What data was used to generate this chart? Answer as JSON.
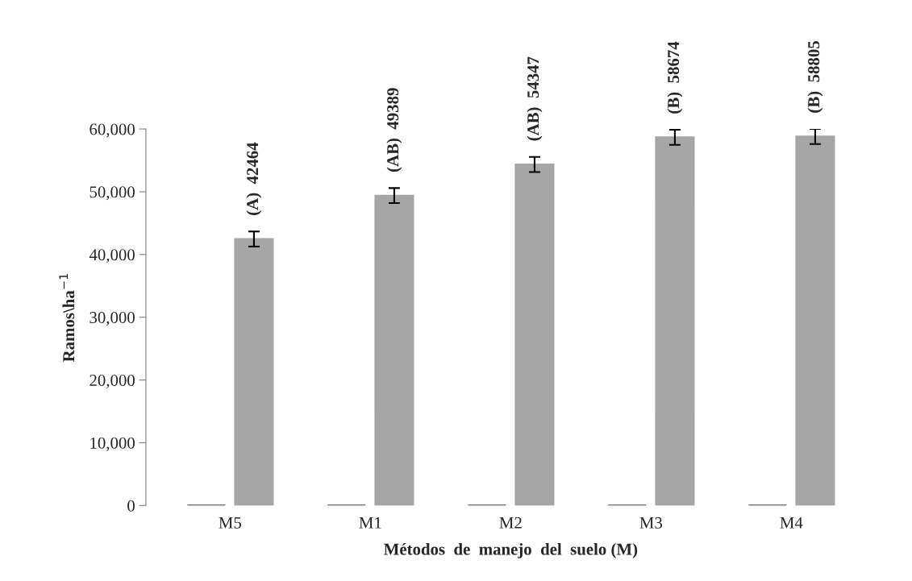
{
  "chart_data": {
    "type": "bar",
    "xlabel": "Métodos  de  manejo  del  suelo (M)",
    "ylabel": "Ramos\\ha$^{−1}$",
    "categories": [
      "M5",
      "M1",
      "M2",
      "M3",
      "M4"
    ],
    "series": [
      {
        "color": "#404040",
        "values": [
          0,
          0,
          0,
          0,
          0
        ]
      },
      {
        "color": "#a6a6a6",
        "values": [
          42464,
          49389,
          54347,
          58674,
          58805
        ],
        "errors": [
          1200,
          1200,
          1200,
          1200,
          1200
        ],
        "value_labels": [
          "(A)  42464",
          "(AB)  49389",
          "(AB)  54347",
          "(B)  58674",
          "(B)  58805"
        ]
      }
    ],
    "ylim": [
      0,
      60000
    ],
    "yticks": [
      {
        "value": 0,
        "label": "0"
      },
      {
        "value": 10000,
        "label": "10,000"
      },
      {
        "value": 20000,
        "label": "20,000"
      },
      {
        "value": 30000,
        "label": "30,000"
      },
      {
        "value": 40000,
        "label": "40,000"
      },
      {
        "value": 50000,
        "label": "50,000"
      },
      {
        "value": 60000,
        "label": "60,000"
      }
    ],
    "grid": false
  }
}
